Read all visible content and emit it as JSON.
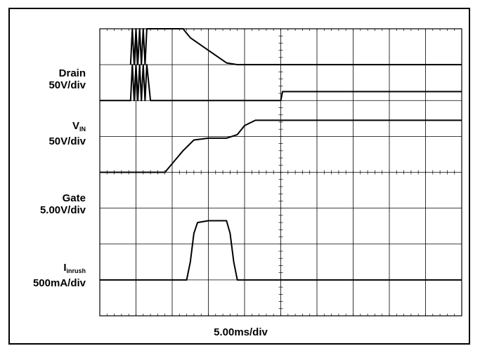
{
  "chart_data": {
    "type": "line",
    "grid": true,
    "divisions": {
      "x": 10,
      "y": 8
    },
    "x_unit": "div",
    "y_unit": "div",
    "xlabel": "5.00ms/div",
    "xlim": [
      0,
      10
    ],
    "ylim": [
      0,
      8
    ],
    "series": [
      {
        "name": "Drain",
        "scale": "50V/div",
        "x": [
          0.85,
          0.9,
          0.95,
          1.0,
          1.05,
          1.1,
          1.15,
          1.2,
          1.25,
          1.3,
          1.4,
          2.3,
          2.5,
          3.0,
          3.5,
          3.8,
          4.0,
          5.0,
          10.0
        ],
        "y": [
          7.0,
          8.0,
          7.0,
          8.0,
          7.0,
          8.0,
          7.0,
          8.0,
          7.0,
          8.0,
          8.0,
          8.0,
          7.75,
          7.4,
          7.05,
          7.0,
          7.0,
          7.0,
          7.0
        ]
      },
      {
        "name": "VIN",
        "scale": "50V/div",
        "x": [
          0.0,
          0.85,
          0.9,
          0.95,
          1.0,
          1.05,
          1.1,
          1.15,
          1.2,
          1.25,
          1.3,
          1.4,
          4.9,
          5.0,
          5.05,
          10.0
        ],
        "y": [
          6.0,
          6.0,
          7.0,
          6.0,
          7.0,
          6.0,
          7.0,
          6.0,
          7.0,
          6.0,
          7.0,
          6.0,
          6.0,
          6.0,
          6.25,
          6.25
        ]
      },
      {
        "name": "Gate",
        "scale": "5.00V/div",
        "x": [
          0.0,
          1.7,
          1.8,
          2.3,
          2.6,
          3.0,
          3.5,
          3.8,
          4.0,
          4.3,
          4.5,
          4.9,
          5.0,
          10.0
        ],
        "y": [
          4.0,
          4.0,
          4.0,
          4.6,
          4.9,
          4.95,
          4.95,
          5.05,
          5.3,
          5.45,
          5.45,
          5.45,
          5.45,
          5.45
        ]
      },
      {
        "name": "Iinrush",
        "scale": "500mA/div",
        "x": [
          0.0,
          2.4,
          2.5,
          2.6,
          2.7,
          3.0,
          3.5,
          3.6,
          3.7,
          3.8,
          5.0,
          10.0
        ],
        "y": [
          1.0,
          1.0,
          1.5,
          2.3,
          2.6,
          2.65,
          2.65,
          2.3,
          1.5,
          1.0,
          1.0,
          1.0
        ]
      }
    ]
  },
  "labels": {
    "drain": {
      "name": "Drain",
      "scale": "50V/div"
    },
    "vin": {
      "name": "V",
      "sub": "IN",
      "scale": "50V/div"
    },
    "gate": {
      "name": "Gate",
      "scale": "5.00V/div"
    },
    "inrush": {
      "name": "I",
      "sub": "inrush",
      "scale": "500mA/div"
    }
  }
}
